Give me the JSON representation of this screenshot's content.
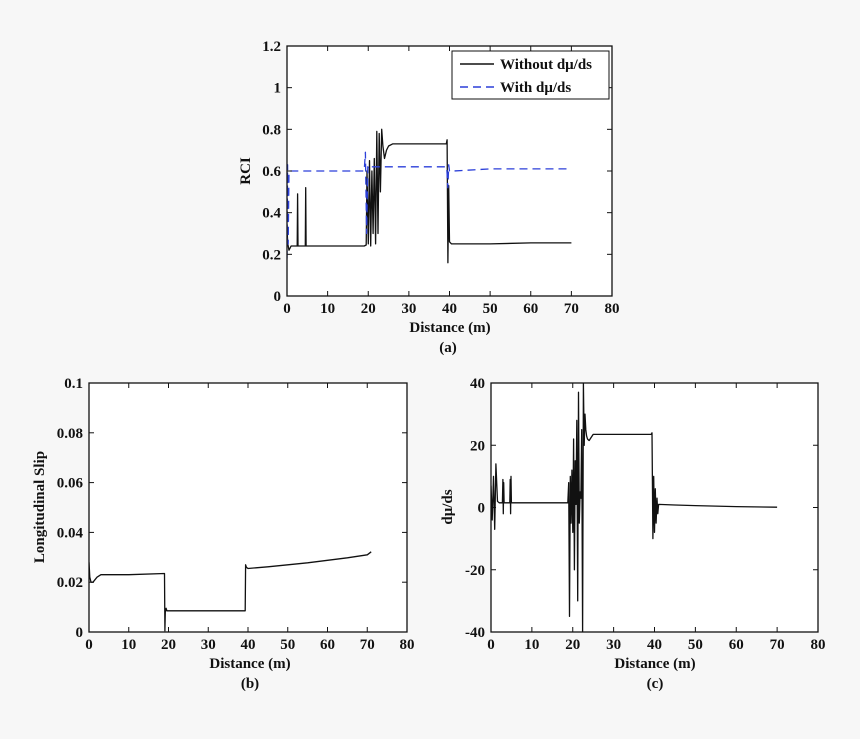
{
  "chart_data": [
    {
      "id": "a",
      "type": "line",
      "panel_label": "(a)",
      "xlabel": "Distance (m)",
      "ylabel": "RCI",
      "xlim": [
        0,
        80
      ],
      "ylim": [
        0,
        1.2
      ],
      "xticks": [
        0,
        10,
        20,
        30,
        40,
        50,
        60,
        70,
        80
      ],
      "xtick_labels": [
        "0",
        "10",
        "20",
        "30",
        "40",
        "50",
        "60",
        "70",
        "80"
      ],
      "yticks": [
        0,
        0.2,
        0.4,
        0.6,
        0.8,
        1,
        1.2
      ],
      "ytick_labels": [
        "0",
        "0.2",
        "0.4",
        "0.6",
        "0.8",
        "1",
        "1.2"
      ],
      "legend_position": "top-right",
      "series": [
        {
          "name": "Without dμ/ds",
          "color": "#111111",
          "style": "solid",
          "x": [
            0,
            0.2,
            0.5,
            1,
            2.5,
            2.6,
            2.7,
            2.8,
            4.5,
            4.6,
            4.7,
            4.8,
            10,
            19,
            19.5,
            19.7,
            20,
            20.3,
            20.6,
            20.9,
            21.2,
            21.5,
            21.8,
            22.1,
            22.4,
            22.7,
            23,
            23.3,
            23.6,
            24,
            24.5,
            25,
            26,
            27,
            30,
            35,
            39.2,
            39.4,
            39.6,
            39.8,
            40,
            40.5,
            41,
            50,
            60,
            70
          ],
          "y": [
            0.32,
            0.25,
            0.22,
            0.24,
            0.24,
            0.49,
            0.24,
            0.24,
            0.24,
            0.52,
            0.24,
            0.24,
            0.24,
            0.24,
            0.245,
            0.6,
            0.25,
            0.65,
            0.24,
            0.6,
            0.3,
            0.66,
            0.25,
            0.79,
            0.3,
            0.78,
            0.5,
            0.8,
            0.72,
            0.66,
            0.7,
            0.72,
            0.73,
            0.73,
            0.73,
            0.73,
            0.73,
            0.75,
            0.16,
            0.53,
            0.26,
            0.25,
            0.25,
            0.25,
            0.255,
            0.255
          ]
        },
        {
          "name": "With dμ/ds",
          "color": "#2b3fd9",
          "style": "dashed",
          "x": [
            0,
            0.15,
            0.3,
            0.5,
            1,
            10,
            19,
            19.3,
            19.6,
            19.9,
            20.2,
            20.5,
            21,
            25,
            30,
            39.3,
            39.6,
            39.8,
            40,
            41,
            50,
            60,
            70
          ],
          "y": [
            0.18,
            0.63,
            0.25,
            0.6,
            0.6,
            0.6,
            0.6,
            0.69,
            0.3,
            0.62,
            0.61,
            0.62,
            0.62,
            0.62,
            0.62,
            0.62,
            0.52,
            0.63,
            0.6,
            0.6,
            0.61,
            0.61,
            0.61
          ]
        }
      ]
    },
    {
      "id": "b",
      "type": "line",
      "panel_label": "(b)",
      "xlabel": "Distance (m)",
      "ylabel": "Longitudinal Slip",
      "xlim": [
        0,
        80
      ],
      "ylim": [
        0,
        0.1
      ],
      "xticks": [
        0,
        10,
        20,
        30,
        40,
        50,
        60,
        70,
        80
      ],
      "xtick_labels": [
        "0",
        "10",
        "20",
        "30",
        "40",
        "50",
        "60",
        "70",
        "80"
      ],
      "yticks": [
        0,
        0.02,
        0.04,
        0.06,
        0.08,
        0.1
      ],
      "ytick_labels": [
        "0",
        "0.02",
        "0.04",
        "0.06",
        "0.08",
        "0.1"
      ],
      "series": [
        {
          "color": "#111111",
          "style": "solid",
          "x": [
            0,
            0.2,
            0.5,
            1,
            1.5,
            2,
            3,
            10,
            19,
            19.1,
            19.2,
            19.4,
            19.6,
            20,
            25,
            30,
            39.3,
            39.4,
            39.6,
            40,
            42,
            45,
            50,
            55,
            60,
            65,
            70,
            71
          ],
          "y": [
            0.028,
            0.022,
            0.02,
            0.02,
            0.021,
            0.022,
            0.023,
            0.023,
            0.0235,
            0.0005,
            0.008,
            0.0095,
            0.0085,
            0.0085,
            0.0085,
            0.0085,
            0.0085,
            0.027,
            0.026,
            0.0255,
            0.0258,
            0.0262,
            0.027,
            0.0278,
            0.0288,
            0.0298,
            0.031,
            0.0322
          ]
        }
      ]
    },
    {
      "id": "c",
      "type": "line",
      "panel_label": "(c)",
      "xlabel": "Distance (m)",
      "ylabel": "dμ/ds",
      "xlim": [
        0,
        80
      ],
      "ylim": [
        -40,
        40
      ],
      "xticks": [
        0,
        10,
        20,
        30,
        40,
        50,
        60,
        70,
        80
      ],
      "xtick_labels": [
        "0",
        "10",
        "20",
        "30",
        "40",
        "50",
        "60",
        "70",
        "80"
      ],
      "yticks": [
        -40,
        -20,
        0,
        20,
        40
      ],
      "ytick_labels": [
        "-40",
        "-20",
        "0",
        "20",
        "40"
      ],
      "series": [
        {
          "color": "#111111",
          "style": "solid",
          "x": [
            0,
            0.3,
            0.6,
            0.9,
            1.2,
            1.6,
            2,
            2.8,
            2.9,
            3.0,
            3.1,
            3.2,
            4.6,
            4.7,
            4.8,
            4.9,
            5,
            10,
            18.8,
            19.0,
            19.2,
            19.4,
            19.6,
            19.8,
            20,
            20.2,
            20.4,
            20.6,
            20.8,
            21,
            21.2,
            21.4,
            21.6,
            21.8,
            22,
            22.2,
            22.4,
            22.6,
            22.8,
            23,
            23.2,
            23.4,
            23.6,
            24,
            24.5,
            25,
            26,
            27,
            30,
            35,
            39.2,
            39.4,
            39.6,
            39.8,
            40,
            40.2,
            40.4,
            40.6,
            40.8,
            41,
            45,
            50,
            60,
            70
          ],
          "y": [
            7,
            -4,
            10,
            -7,
            14,
            2,
            1.5,
            1.5,
            9,
            -2,
            8,
            1.5,
            1.5,
            9,
            -2,
            10,
            1.5,
            1.5,
            1.5,
            8,
            -35,
            10,
            -5,
            12,
            -8,
            22,
            -20,
            15,
            1,
            28,
            -30,
            37,
            -5,
            5,
            3,
            25,
            -40,
            40,
            20,
            30,
            25,
            23,
            22,
            21.5,
            22.5,
            23.5,
            23.5,
            23.5,
            23.5,
            23.5,
            23.5,
            24,
            -10,
            10,
            -8,
            6,
            -5,
            3,
            -2,
            1,
            0.8,
            0.6,
            0.3,
            0.1
          ]
        }
      ]
    }
  ]
}
